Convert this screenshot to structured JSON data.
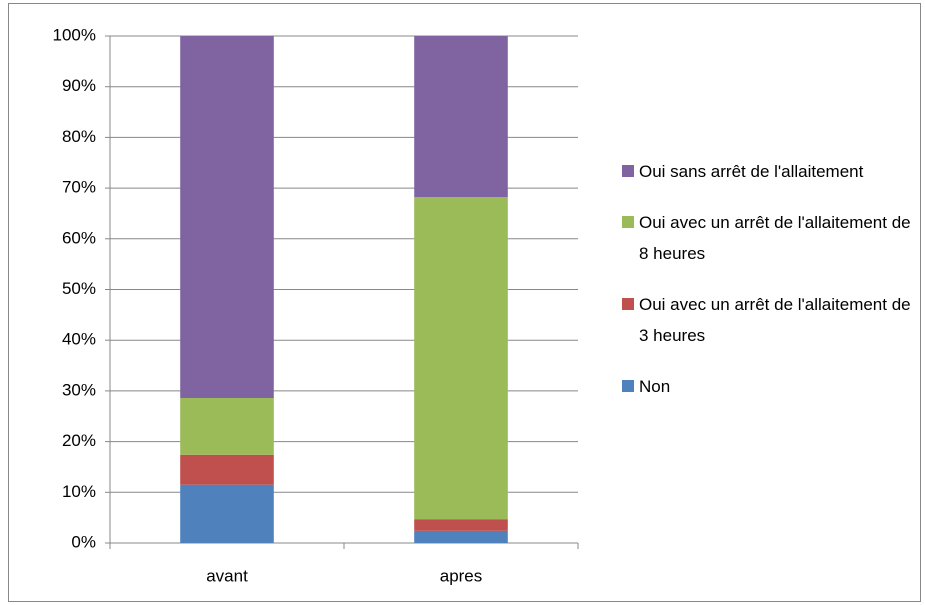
{
  "chart_data": {
    "type": "stacked_bar",
    "categories": [
      "avant",
      "apres"
    ],
    "series": [
      {
        "name": "Non",
        "color": "#4f81bd",
        "values": [
          11.5,
          2.4
        ]
      },
      {
        "name": "Oui avec un arrêt de l'allaitement de 3 heures",
        "color": "#c0504d",
        "values": [
          5.9,
          2.3
        ]
      },
      {
        "name": "Oui avec un arrêt de l'allaitement de 8 heures",
        "color": "#9bbb59",
        "values": [
          11.2,
          63.5
        ]
      },
      {
        "name": "Oui sans arrêt de l'allaitement",
        "color": "#8064a2",
        "values": [
          71.4,
          31.8
        ]
      }
    ],
    "ylim": [
      0,
      100
    ],
    "yticks": [
      {
        "value": 0,
        "label": "0%"
      },
      {
        "value": 10,
        "label": "10%"
      },
      {
        "value": 20,
        "label": "20%"
      },
      {
        "value": 30,
        "label": "30%"
      },
      {
        "value": 40,
        "label": "40%"
      },
      {
        "value": 50,
        "label": "50%"
      },
      {
        "value": 60,
        "label": "60%"
      },
      {
        "value": 70,
        "label": "70%"
      },
      {
        "value": 80,
        "label": "80%"
      },
      {
        "value": 90,
        "label": "90%"
      },
      {
        "value": 100,
        "label": "100%"
      }
    ],
    "grid": true,
    "legend": "right"
  }
}
